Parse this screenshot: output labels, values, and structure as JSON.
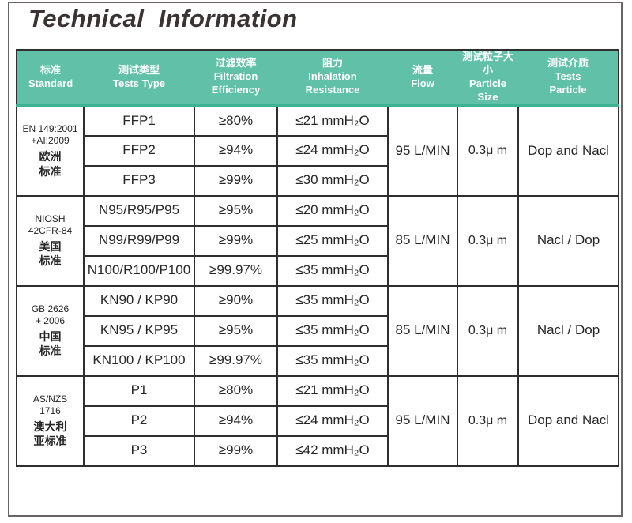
{
  "page": {
    "title": "Technical  Information"
  },
  "colors": {
    "header_bg": "#61c0a8",
    "header_accent": "#3eb394",
    "header_text": "#ffffff",
    "grid": "#2e2e2e",
    "title_text": "#3a3233",
    "frame_border": "#6a6466"
  },
  "table": {
    "columns": [
      {
        "id": "standard",
        "label": "标准\nStandard"
      },
      {
        "id": "tests_type",
        "label": "测试类型\nTests  Type"
      },
      {
        "id": "filtration_efficiency",
        "label": "过滤效率\nFiltration\nEfficiency"
      },
      {
        "id": "inhalation_resistance",
        "label": "阻力\nInhalation\nResistance"
      },
      {
        "id": "flow",
        "label": "流量\nFlow"
      },
      {
        "id": "particle_size",
        "label": "测试粒子大小\nParticle\nSize"
      },
      {
        "id": "tests_particle",
        "label": "测试介质\nTests\nParticle"
      }
    ],
    "groups": [
      {
        "standard_code": "EN 149:2001\n+AI:2009",
        "standard_name": "欧洲\n标准",
        "rows": [
          {
            "tests_type": "FFP1",
            "filtration_efficiency": "≥80%",
            "inhalation_resistance": "≤21  mmH₂O"
          },
          {
            "tests_type": "FFP2",
            "filtration_efficiency": "≥94%",
            "inhalation_resistance": "≤24  mmH₂O"
          },
          {
            "tests_type": "FFP3",
            "filtration_efficiency": "≥99%",
            "inhalation_resistance": "≤30  mmH₂O"
          }
        ],
        "flow": "95 L/MIN",
        "particle_size": "0.3μ m",
        "tests_particle": "Dop and Nacl"
      },
      {
        "standard_code": "NIOSH\n42CFR-84",
        "standard_name": "美国\n标准",
        "rows": [
          {
            "tests_type": "N95/R95/P95",
            "filtration_efficiency": "≥95%",
            "inhalation_resistance": "≤20  mmH₂O"
          },
          {
            "tests_type": "N99/R99/P99",
            "filtration_efficiency": "≥99%",
            "inhalation_resistance": "≤25  mmH₂O"
          },
          {
            "tests_type": "N100/R100/P100",
            "filtration_efficiency": "≥99.97%",
            "inhalation_resistance": "≤35  mmH₂O"
          }
        ],
        "flow": "85 L/MIN",
        "particle_size": "0.3μ m",
        "tests_particle": "Nacl / Dop"
      },
      {
        "standard_code": "GB 2626\n+ 2006",
        "standard_name": "中国\n标准",
        "rows": [
          {
            "tests_type": "KN90 / KP90",
            "filtration_efficiency": "≥90%",
            "inhalation_resistance": "≤35  mmH₂O"
          },
          {
            "tests_type": "KN95 / KP95",
            "filtration_efficiency": "≥95%",
            "inhalation_resistance": "≤35  mmH₂O"
          },
          {
            "tests_type": "KN100 / KP100",
            "filtration_efficiency": "≥99.97%",
            "inhalation_resistance": "≤35  mmH₂O"
          }
        ],
        "flow": "85 L/MIN",
        "particle_size": "0.3μ m",
        "tests_particle": "Nacl / Dop"
      },
      {
        "standard_code": "AS/NZS\n1716",
        "standard_name": "澳大利\n亚标准",
        "rows": [
          {
            "tests_type": "P1",
            "filtration_efficiency": "≥80%",
            "inhalation_resistance": "≤21  mmH₂O"
          },
          {
            "tests_type": "P2",
            "filtration_efficiency": "≥94%",
            "inhalation_resistance": "≤24  mmH₂O"
          },
          {
            "tests_type": "P3",
            "filtration_efficiency": "≥99%",
            "inhalation_resistance": "≤42  mmH₂O"
          }
        ],
        "flow": "95 L/MIN",
        "particle_size": "0.3μ m",
        "tests_particle": "Dop and Nacl"
      }
    ]
  }
}
